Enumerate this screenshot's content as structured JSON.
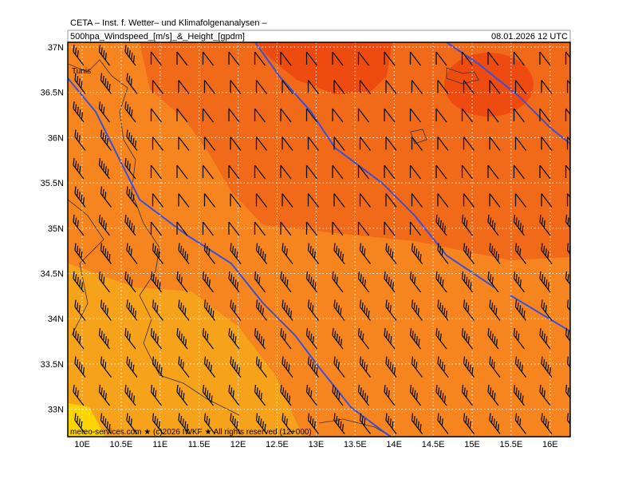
{
  "header": {
    "line1": "CETA – Inst. f. Wetter– und Klimafolgenanalysen –",
    "line2": "500hpa_Windspeed_[m/s]_&_Height_[gpdm]",
    "date": "08.01.2026 12 UTC"
  },
  "map": {
    "place": "Tunis",
    "credit": "meteo-services.com ★ (c)2026 IWKF ★ All rights reserved (12+000)",
    "lat_labels": [
      "37N",
      "36.5N",
      "36N",
      "35.5N",
      "35N",
      "34.5N",
      "34N",
      "33.5N",
      "33N"
    ],
    "lon_labels": [
      "10E",
      "10.5E",
      "11E",
      "11.5E",
      "12E",
      "12.5E",
      "13E",
      "13.5E",
      "14E",
      "14.5E",
      "15E",
      "15.5E",
      "16E"
    ]
  }
}
